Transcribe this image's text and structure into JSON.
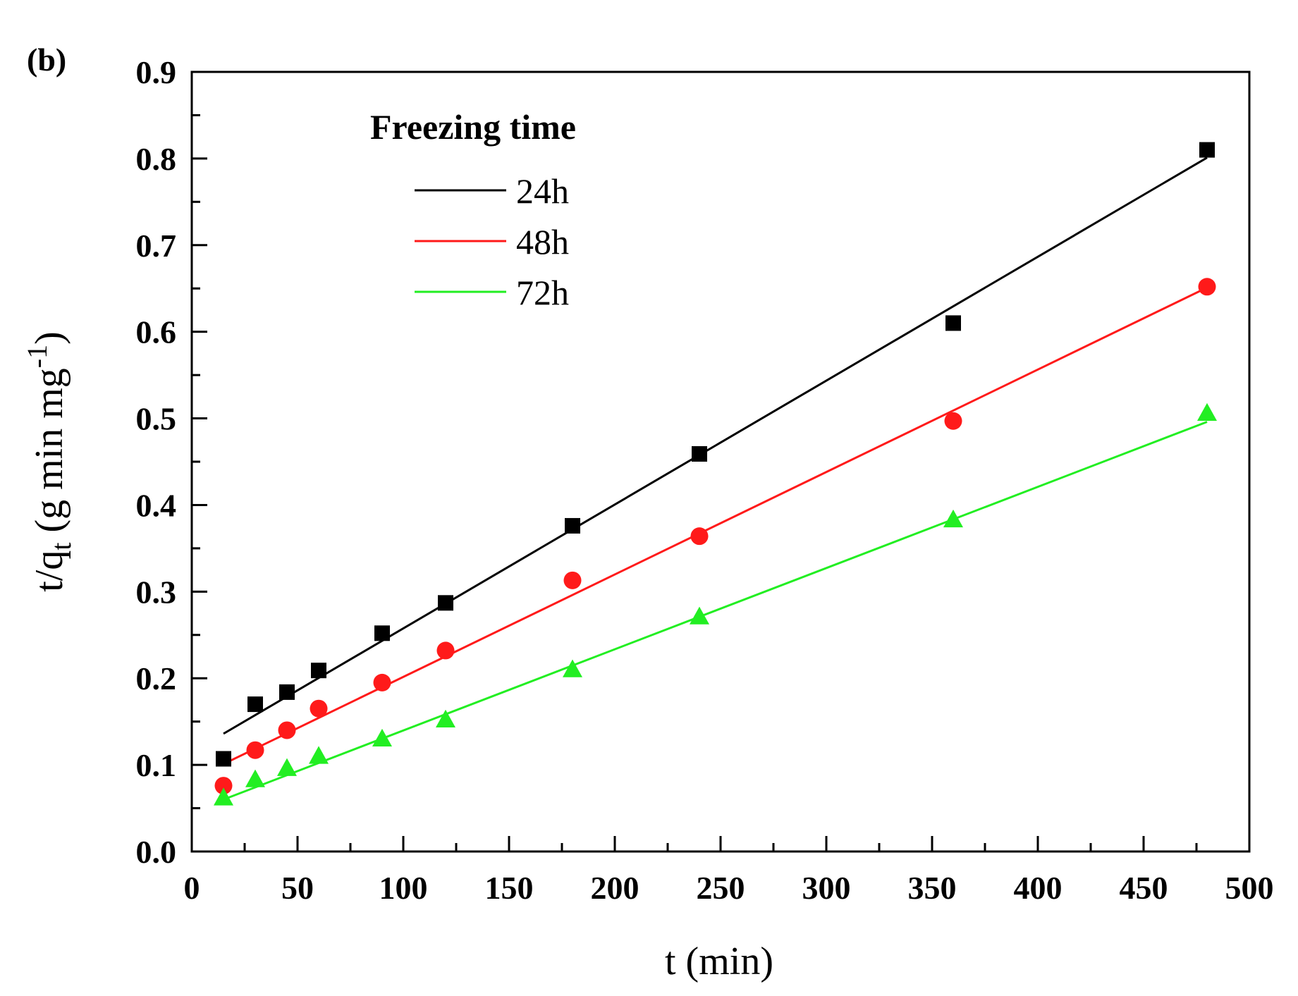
{
  "panel_label": "(b)",
  "chart_data": {
    "type": "scatter",
    "title": "",
    "xlabel": "t (min)",
    "ylabel_main": "t/q",
    "ylabel_sub": "t",
    "ylabel_unit_pre": " (g min mg",
    "ylabel_unit_sup": "-1",
    "ylabel_unit_post": ")",
    "xlim": [
      0,
      500
    ],
    "ylim": [
      0,
      0.9
    ],
    "xticks": [
      0,
      50,
      100,
      150,
      200,
      250,
      300,
      350,
      400,
      450,
      500
    ],
    "xtick_labels": [
      "0",
      "50",
      "100",
      "150",
      "200",
      "250",
      "300",
      "350",
      "400",
      "450",
      "500"
    ],
    "yticks": [
      0.0,
      0.1,
      0.2,
      0.3,
      0.4,
      0.5,
      0.6,
      0.7,
      0.8,
      0.9
    ],
    "ytick_labels": [
      "0.0",
      "0.1",
      "0.2",
      "0.3",
      "0.4",
      "0.5",
      "0.6",
      "0.7",
      "0.8",
      "0.9"
    ],
    "grid": false,
    "legend_title": "Freezing time",
    "legend_position": "top-left",
    "x": [
      15,
      30,
      45,
      60,
      90,
      120,
      180,
      240,
      360,
      480
    ],
    "series": [
      {
        "name": "24h",
        "color": "#000000",
        "marker": "square",
        "values": [
          0.107,
          0.17,
          0.184,
          0.209,
          0.252,
          0.287,
          0.376,
          0.459,
          0.61,
          0.81
        ],
        "fit": {
          "x": [
            15,
            480
          ],
          "y": [
            0.136,
            0.801
          ]
        }
      },
      {
        "name": "48h",
        "color": "#ff1a1a",
        "marker": "circle",
        "values": [
          0.076,
          0.117,
          0.14,
          0.165,
          0.195,
          0.232,
          0.313,
          0.364,
          0.497,
          0.652
        ],
        "fit": {
          "x": [
            15,
            480
          ],
          "y": [
            0.101,
            0.651
          ]
        }
      },
      {
        "name": "72h",
        "color": "#22ee22",
        "marker": "triangle",
        "values": [
          0.062,
          0.083,
          0.096,
          0.11,
          0.13,
          0.152,
          0.21,
          0.271,
          0.383,
          0.506
        ],
        "fit": {
          "x": [
            15,
            480
          ],
          "y": [
            0.06,
            0.496
          ]
        }
      }
    ]
  }
}
